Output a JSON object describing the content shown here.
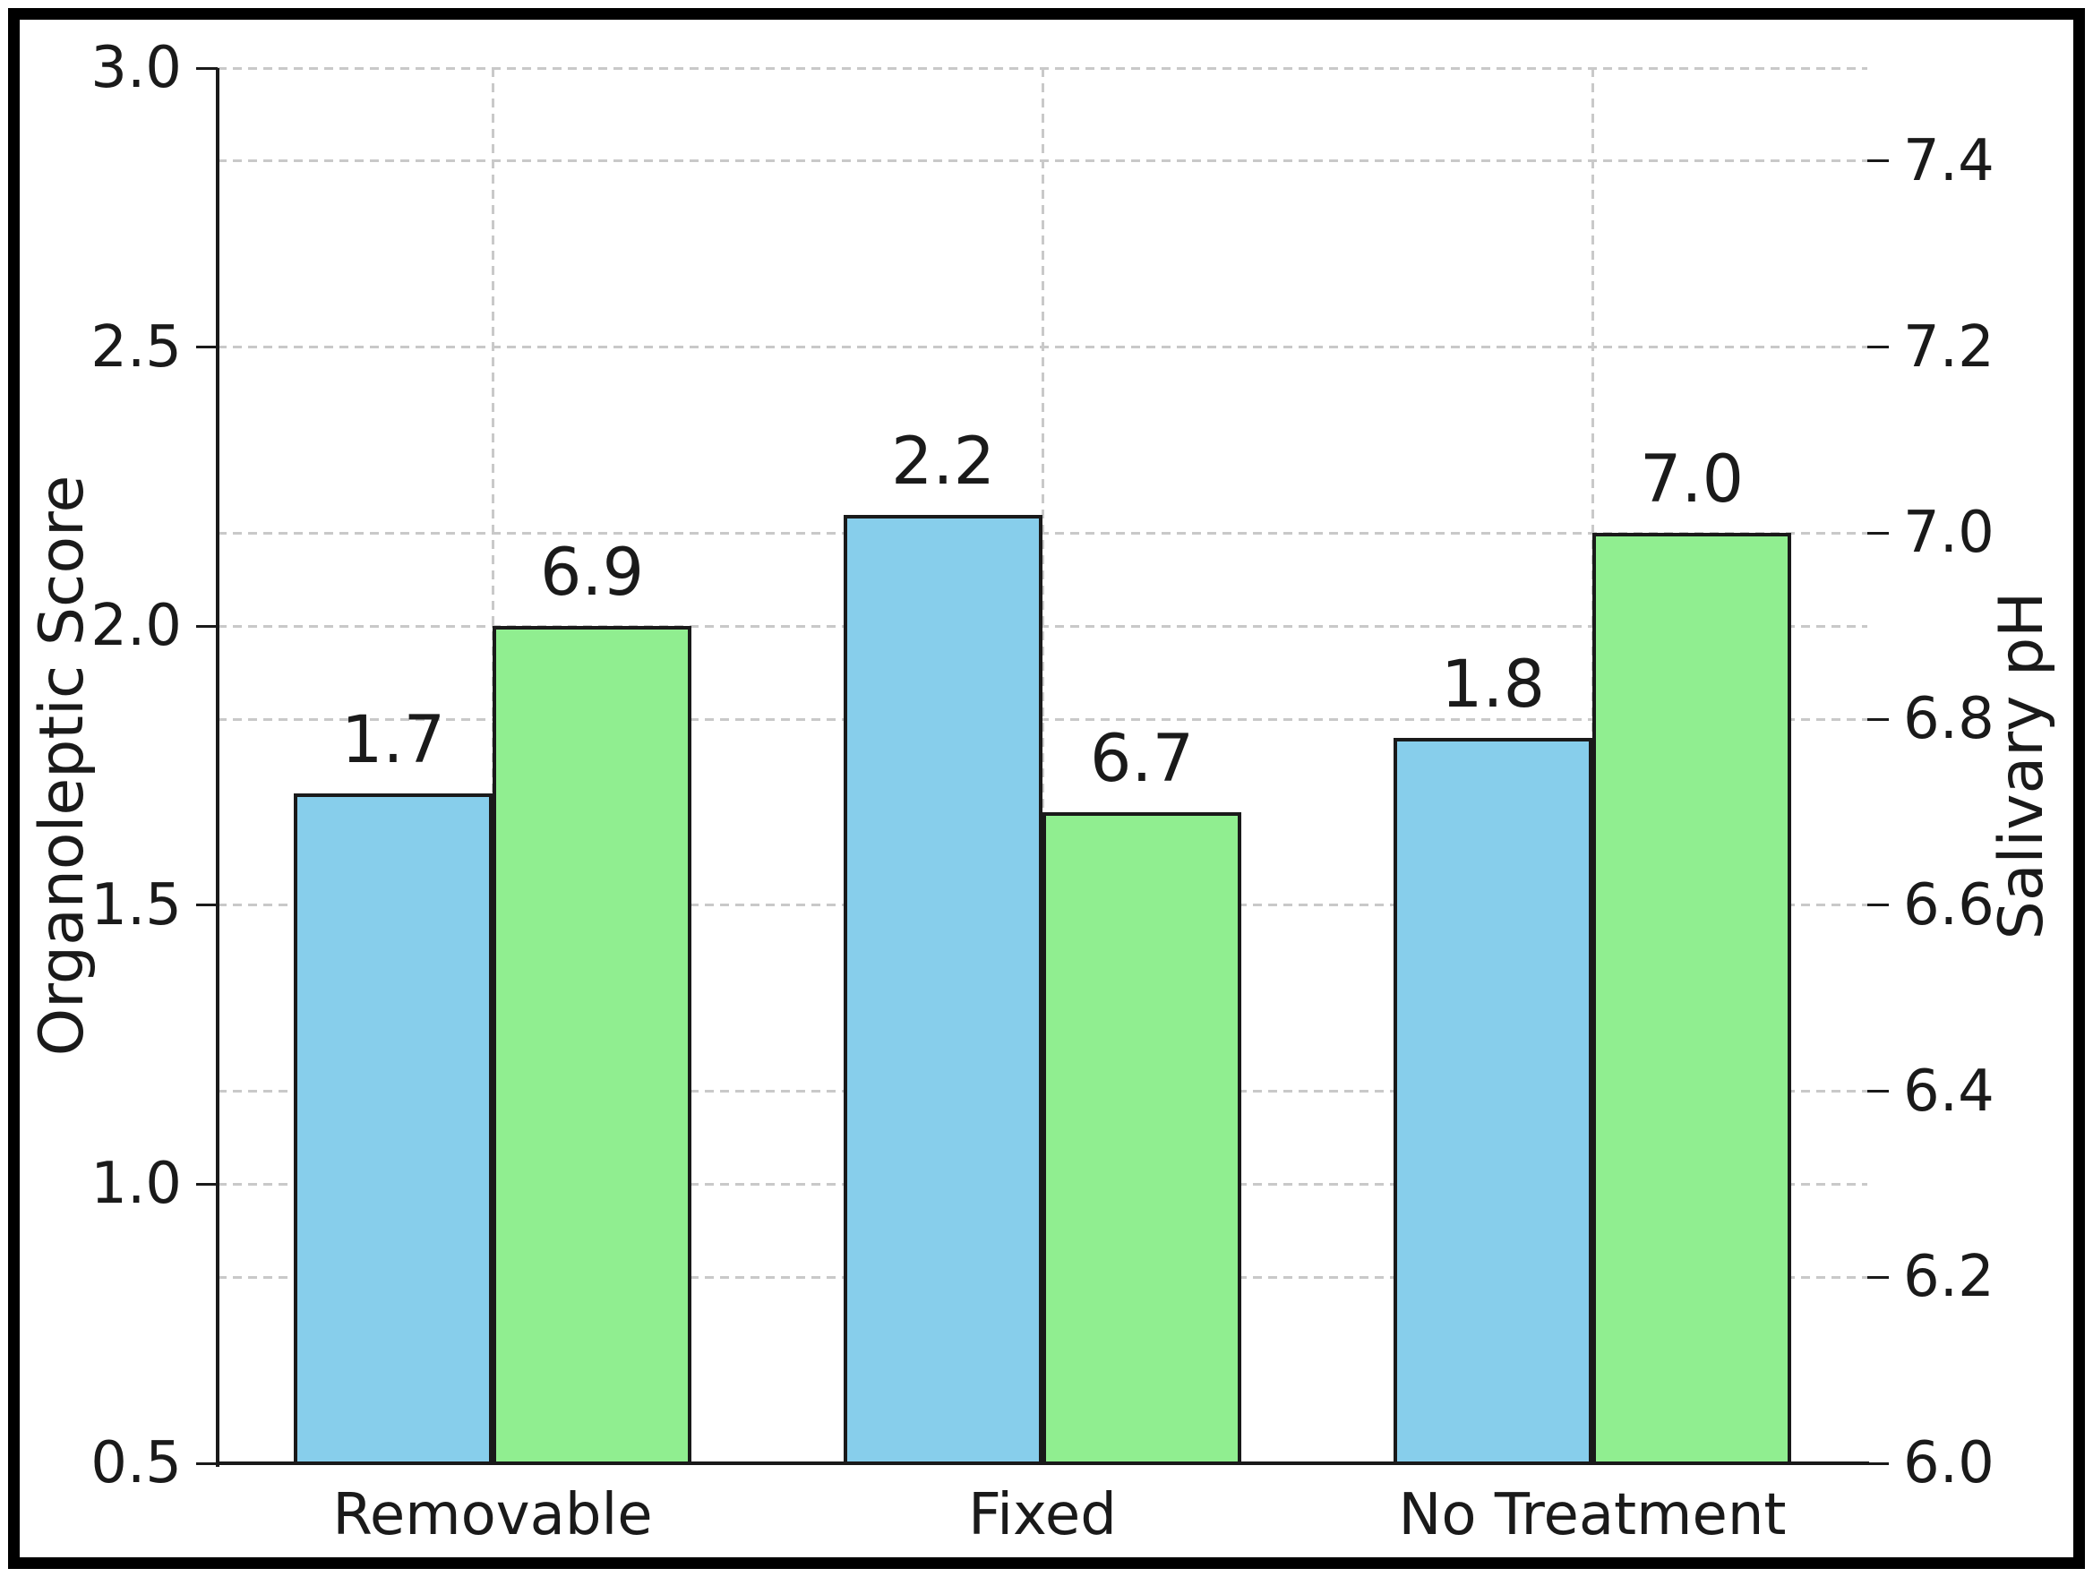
{
  "figure": {
    "background": "#ffffff",
    "frame_color": "#000000",
    "text_color": "#1a1a1a"
  },
  "chart_data": {
    "type": "bar",
    "title": "",
    "categories": [
      "Removable",
      "Fixed",
      "No Treatment"
    ],
    "series": [
      {
        "name": "Organoleptic Score",
        "axis": "left",
        "color": "#87CEEB",
        "edge_color": "#1a1a1a",
        "values": [
          1.7,
          2.2,
          1.8
        ],
        "labels": [
          "1.7",
          "2.2",
          "1.8"
        ]
      },
      {
        "name": "Salivary pH",
        "axis": "right",
        "color": "#90EE90",
        "edge_color": "#1a1a1a",
        "values": [
          6.9,
          6.7,
          7.0
        ],
        "labels": [
          "6.9",
          "6.7",
          "7.0"
        ]
      }
    ],
    "left_axis": {
      "label": "Organoleptic Score",
      "range": [
        0.5,
        3.0
      ],
      "ticks": [
        {
          "v": 0.5,
          "label": "0.5"
        },
        {
          "v": 1.0,
          "label": "1.0"
        },
        {
          "v": 1.5,
          "label": "1.5"
        },
        {
          "v": 2.0,
          "label": "2.0"
        },
        {
          "v": 2.5,
          "label": "2.5"
        },
        {
          "v": 3.0,
          "label": "3.0"
        }
      ]
    },
    "right_axis": {
      "label": "Salivary pH",
      "range": [
        6.0,
        7.5
      ],
      "ticks": [
        {
          "v": 6.0,
          "label": "6.0"
        },
        {
          "v": 6.2,
          "label": "6.2"
        },
        {
          "v": 6.4,
          "label": "6.4"
        },
        {
          "v": 6.6,
          "label": "6.6"
        },
        {
          "v": 6.8,
          "label": "6.8"
        },
        {
          "v": 7.0,
          "label": "7.0"
        },
        {
          "v": 7.2,
          "label": "7.2"
        },
        {
          "v": 7.4,
          "label": "7.4"
        }
      ]
    },
    "grid": {
      "show": true,
      "color": "#c9c9c9",
      "style": "dashed",
      "vertical_at_categories": true
    },
    "legend": {
      "show": false
    },
    "show_values": true
  }
}
